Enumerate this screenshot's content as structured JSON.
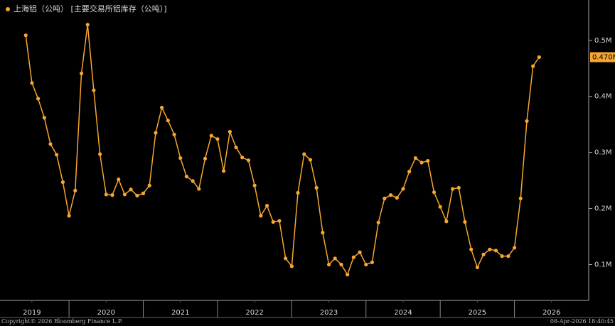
{
  "chart_data": {
    "type": "line",
    "title": "上海铝（公吨） [主要交易所铝库存（公吨）]",
    "copyright": "Copyright© 2026 Bloomberg Finance L.P.",
    "timestamp": "08-Apr-2026 18:40:45",
    "x": [
      2019.417,
      2019.5,
      2019.583,
      2019.667,
      2019.75,
      2019.833,
      2019.917,
      2020.0,
      2020.083,
      2020.167,
      2020.25,
      2020.333,
      2020.417,
      2020.5,
      2020.583,
      2020.667,
      2020.75,
      2020.833,
      2020.917,
      2021.0,
      2021.083,
      2021.167,
      2021.25,
      2021.333,
      2021.417,
      2021.5,
      2021.583,
      2021.667,
      2021.75,
      2021.833,
      2021.917,
      2022.0,
      2022.083,
      2022.167,
      2022.25,
      2022.333,
      2022.417,
      2022.5,
      2022.583,
      2022.667,
      2022.75,
      2022.833,
      2022.917,
      2023.0,
      2023.083,
      2023.167,
      2023.25,
      2023.333,
      2023.417,
      2023.5,
      2023.583,
      2023.667,
      2023.75,
      2023.833,
      2023.917,
      2024.0,
      2024.083,
      2024.167,
      2024.25,
      2024.333,
      2024.417,
      2024.5,
      2024.583,
      2024.667,
      2024.75,
      2024.833,
      2024.917,
      2025.0,
      2025.083,
      2025.167,
      2025.25,
      2025.333,
      2025.417,
      2025.5,
      2025.583,
      2025.667,
      2025.75,
      2025.833,
      2025.917,
      2026.0,
      2026.083,
      2026.167,
      2026.25,
      2026.333
    ],
    "series": [
      {
        "name": "上海铝（公吨）",
        "color": "#f7a631",
        "values": [
          509000,
          424000,
          396000,
          362000,
          315000,
          296000,
          247000,
          187000,
          232000,
          441000,
          528000,
          411000,
          297000,
          225000,
          224000,
          252000,
          225000,
          234000,
          223000,
          227000,
          241000,
          335000,
          380000,
          357000,
          332000,
          290000,
          257000,
          249000,
          235000,
          289000,
          330000,
          324000,
          267000,
          337000,
          309000,
          291000,
          286000,
          241000,
          187000,
          205000,
          176000,
          178000,
          111000,
          97000,
          228000,
          297000,
          287000,
          237000,
          157000,
          100000,
          111000,
          100000,
          82000,
          113000,
          122000,
          100000,
          104000,
          175000,
          218000,
          224000,
          219000,
          235000,
          266000,
          290000,
          282000,
          285000,
          229000,
          203000,
          177000,
          235000,
          237000,
          176000,
          127000,
          95000,
          118000,
          127000,
          125000,
          115000,
          115000,
          130000,
          218000,
          356000,
          454000,
          470000
        ],
        "value_labels": [
          null,
          null,
          null,
          null,
          null,
          null,
          null,
          null,
          null,
          null,
          null,
          null,
          null,
          null,
          null,
          null,
          null,
          null,
          null,
          null,
          null,
          null,
          null,
          null,
          null,
          null,
          null,
          null,
          null,
          null,
          null,
          null,
          null,
          null,
          null,
          null,
          null,
          null,
          null,
          null,
          null,
          null,
          null,
          null,
          null,
          null,
          null,
          null,
          null,
          null,
          null,
          null,
          null,
          null,
          null,
          null,
          null,
          null,
          null,
          null,
          null,
          null,
          null,
          null,
          null,
          null,
          null,
          null,
          null,
          null,
          null,
          null,
          null,
          null,
          null,
          null,
          null,
          null,
          null,
          null,
          null,
          null,
          null,
          "0.470M"
        ]
      }
    ],
    "xlim": [
      2019.07,
      2027.0
    ],
    "xticks": [
      {
        "value": 2019.5,
        "label": "2019"
      },
      {
        "value": 2020.5,
        "label": "2020"
      },
      {
        "value": 2021.5,
        "label": "2021"
      },
      {
        "value": 2022.5,
        "label": "2022"
      },
      {
        "value": 2023.5,
        "label": "2023"
      },
      {
        "value": 2024.5,
        "label": "2024"
      },
      {
        "value": 2025.5,
        "label": "2025"
      },
      {
        "value": 2026.5,
        "label": "2026"
      }
    ],
    "ylim": [
      36000,
      572000
    ],
    "yticks": [
      {
        "value": 100000,
        "label": "0.1M"
      },
      {
        "value": 200000,
        "label": "0.2M"
      },
      {
        "value": 300000,
        "label": "0.3M"
      },
      {
        "value": 400000,
        "label": "0.4M"
      },
      {
        "value": 500000,
        "label": "0.5M"
      }
    ],
    "y_axis_side": "right",
    "grid": false
  }
}
